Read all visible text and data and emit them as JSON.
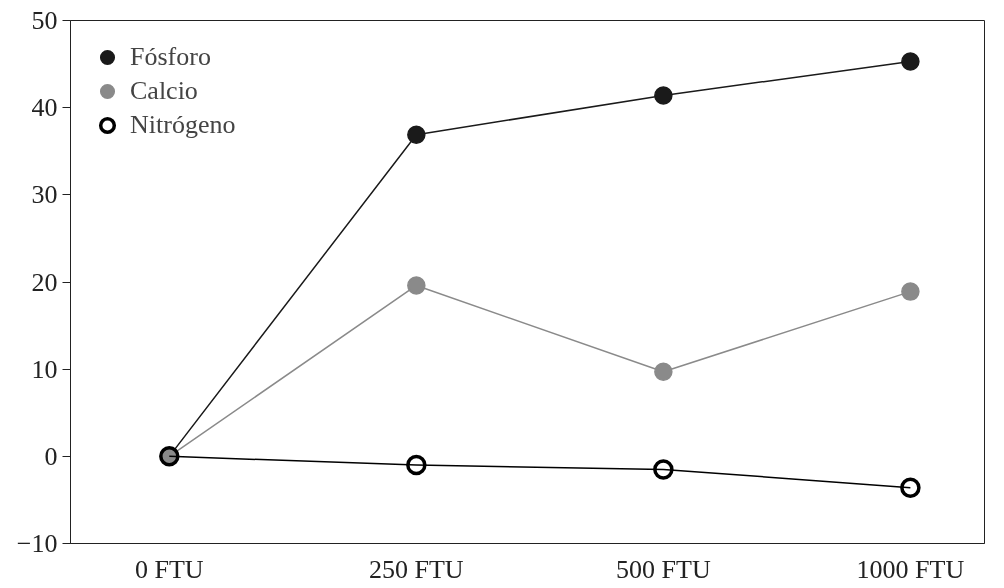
{
  "chart_data": {
    "type": "line",
    "categories": [
      "0 FTU",
      "250 FTU",
      "500 FTU",
      "1000 FTU"
    ],
    "series": [
      {
        "name": "Fósforo",
        "color": "#1a1a1a",
        "values": [
          0,
          36.9,
          41.4,
          45.3
        ]
      },
      {
        "name": "Calcio",
        "color": "#8a8a8a",
        "values": [
          0,
          19.6,
          9.7,
          18.9
        ]
      },
      {
        "name": "Nitrógeno",
        "color": "#000000",
        "marker": "circle_open",
        "values": [
          0,
          -1,
          -1.5,
          -3.6
        ]
      }
    ],
    "ylim": [
      -10,
      50
    ],
    "yticks": [
      {
        "value": -10,
        "label": "−10"
      },
      0,
      10,
      20,
      30,
      40,
      50
    ],
    "grid": false,
    "legend": "top left",
    "marker": "circle",
    "line_style": "solid"
  }
}
